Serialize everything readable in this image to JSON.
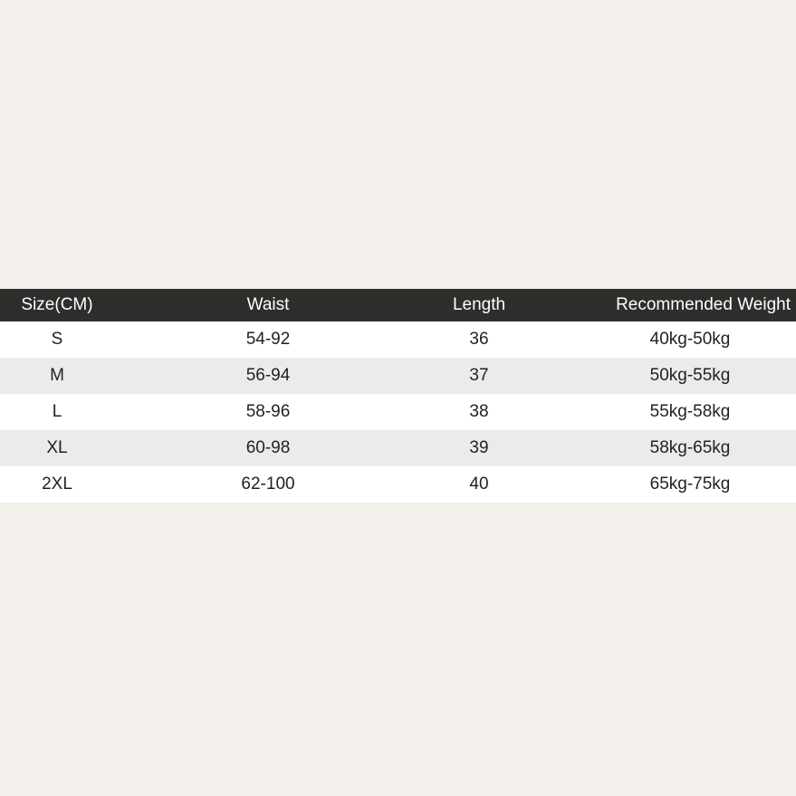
{
  "table": {
    "headers": [
      "Size(CM)",
      "Waist",
      "Length",
      "Recommended Weight"
    ],
    "rows": [
      [
        "S",
        "54-92",
        "36",
        "40kg-50kg"
      ],
      [
        "M",
        "56-94",
        "37",
        "50kg-55kg"
      ],
      [
        "L",
        "58-96",
        "38",
        "55kg-58kg"
      ],
      [
        "XL",
        "60-98",
        "39",
        "58kg-65kg"
      ],
      [
        "2XL",
        "62-100",
        "40",
        "65kg-75kg"
      ]
    ]
  },
  "colors": {
    "background": "#f3f0ec",
    "header": "#2e2e2c",
    "row_alt": "#ebebeb"
  }
}
